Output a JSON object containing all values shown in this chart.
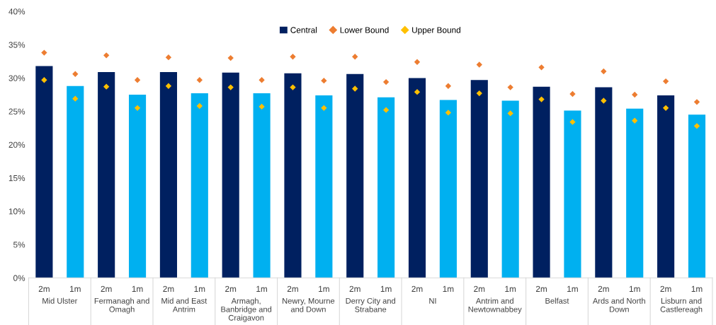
{
  "chart_data": {
    "type": "bar",
    "categories": [
      "2m",
      "1m",
      "2m",
      "1m",
      "2m",
      "1m",
      "2m",
      "1m",
      "2m",
      "1m",
      "2m",
      "1m",
      "2m",
      "1m",
      "2m",
      "1m",
      "2m",
      "1m",
      "2m",
      "1m",
      "2m",
      "1m"
    ],
    "annotations": [
      "Mid Ulster",
      "Fermanagh and Omagh",
      "Mid and East Antrim",
      "Armagh, Banbridge and Craigavon",
      "Newry, Mourne and Down",
      "Derry City and Strabane",
      "NI",
      "Antrim and Newtownabbey",
      "Belfast",
      "Ards and North Down",
      "Lisburn and Castlereagh"
    ],
    "series": [
      {
        "name": "Central",
        "color": "#002060",
        "colors": [
          "#002060",
          "#00b0f0",
          "#002060",
          "#00b0f0",
          "#002060",
          "#00b0f0",
          "#002060",
          "#00b0f0",
          "#002060",
          "#00b0f0",
          "#002060",
          "#00b0f0",
          "#002060",
          "#00b0f0",
          "#002060",
          "#00b0f0",
          "#002060",
          "#00b0f0",
          "#002060",
          "#00b0f0",
          "#002060",
          "#00b0f0"
        ],
        "values": [
          31.8,
          28.8,
          30.9,
          27.5,
          30.9,
          27.7,
          30.8,
          27.7,
          30.7,
          27.4,
          30.6,
          27.1,
          30.0,
          26.7,
          29.7,
          26.6,
          28.7,
          25.1,
          28.6,
          25.4,
          27.4,
          24.5
        ]
      },
      {
        "name": "Lower Bound",
        "type": "scatter",
        "marker": "diamond",
        "color": "#ed7d31",
        "values": [
          33.8,
          30.6,
          33.4,
          29.7,
          33.1,
          29.7,
          33.0,
          29.7,
          33.2,
          29.6,
          33.2,
          29.4,
          32.4,
          28.8,
          32.0,
          28.6,
          31.6,
          27.6,
          31.0,
          27.5,
          29.5,
          26.4
        ]
      },
      {
        "name": "Upper Bound",
        "type": "scatter",
        "marker": "diamond",
        "color": "#ffc000",
        "values": [
          29.7,
          26.9,
          28.7,
          25.5,
          28.8,
          25.8,
          28.6,
          25.7,
          28.6,
          25.5,
          28.4,
          25.2,
          27.9,
          24.8,
          27.7,
          24.7,
          26.8,
          23.4,
          26.6,
          23.6,
          25.5,
          22.8
        ]
      }
    ],
    "ylim": [
      0,
      40
    ],
    "yticks": [
      {
        "value": 0,
        "label": "0%"
      },
      {
        "value": 5,
        "label": "5%"
      },
      {
        "value": 10,
        "label": "10%"
      },
      {
        "value": 15,
        "label": "15%"
      },
      {
        "value": 20,
        "label": "20%"
      },
      {
        "value": 25,
        "label": "25%"
      },
      {
        "value": 30,
        "label": "30%"
      },
      {
        "value": 35,
        "label": "35%"
      },
      {
        "value": 40,
        "label": "40%"
      }
    ],
    "legend": "top"
  }
}
